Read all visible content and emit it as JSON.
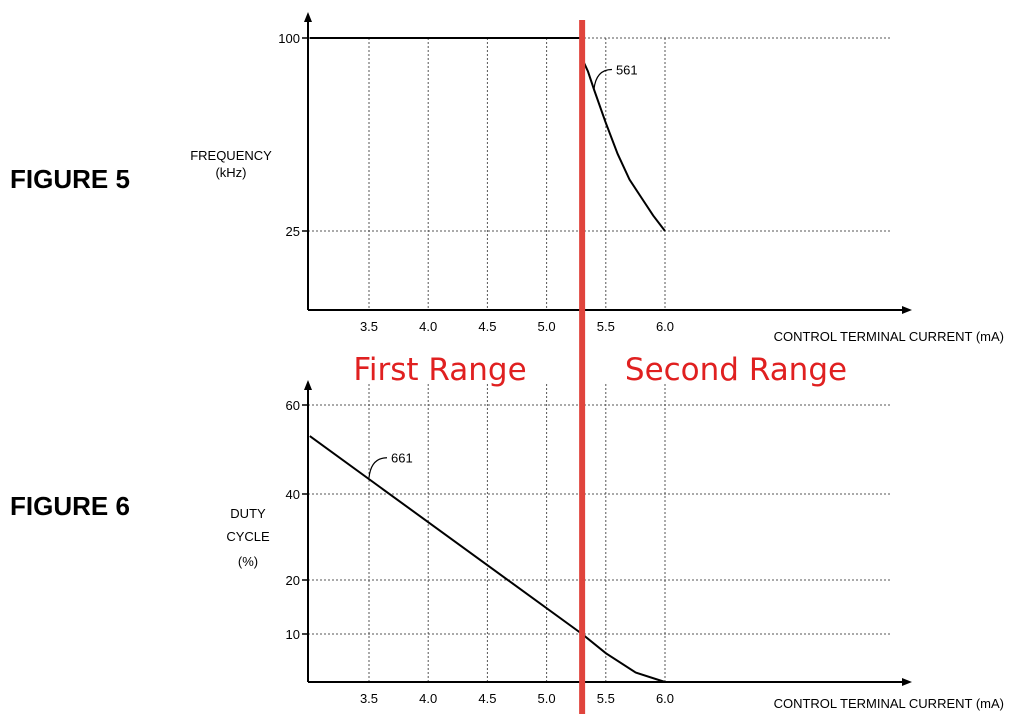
{
  "colors": {
    "divider": "#e0443c",
    "range_text": "#e02020",
    "ink": "#000000"
  },
  "ranges": {
    "first": "First Range",
    "second": "Second Range",
    "boundary_x": 5.3
  },
  "chart_data": [
    {
      "id": "fig5",
      "type": "line",
      "figure_label": "FIGURE 5",
      "ylabel_lines": [
        "FREQUENCY",
        "(kHz)"
      ],
      "xlabel": "CONTROL TERMINAL CURRENT (mA)",
      "xticks": [
        3.5,
        4.0,
        4.5,
        5.0,
        5.5,
        6.0
      ],
      "xtick_labels": [
        "3.5",
        "4.0",
        "4.5",
        "5.0",
        "5.5",
        "6.0"
      ],
      "yticks": [
        25,
        100
      ],
      "ytick_labels": [
        "25",
        "100"
      ],
      "xlim": [
        3.0,
        6.0
      ],
      "ylim": [
        0,
        100
      ],
      "grid": "dotted",
      "series": [
        {
          "callout": "561",
          "callout_at": 5.4,
          "points": [
            [
              3.0,
              100
            ],
            [
              5.3,
              100
            ],
            [
              5.3,
              92
            ],
            [
              5.35,
              87
            ],
            [
              5.4,
              80
            ],
            [
              5.5,
              67
            ],
            [
              5.6,
              55
            ],
            [
              5.7,
              45
            ],
            [
              5.8,
              38
            ],
            [
              5.9,
              31
            ],
            [
              6.0,
              25
            ]
          ]
        }
      ]
    },
    {
      "id": "fig6",
      "type": "line",
      "figure_label": "FIGURE 6",
      "ylabel_lines": [
        "DUTY",
        "CYCLE",
        "(%)"
      ],
      "xlabel": "CONTROL TERMINAL CURRENT (mA)",
      "xticks": [
        3.5,
        4.0,
        4.5,
        5.0,
        5.5,
        6.0
      ],
      "xtick_labels": [
        "3.5",
        "4.0",
        "4.5",
        "5.0",
        "5.5",
        "6.0"
      ],
      "yticks": [
        10,
        20,
        40,
        60
      ],
      "ytick_labels": [
        "10",
        "20",
        "40",
        "60"
      ],
      "xlim": [
        3.0,
        6.0
      ],
      "ylim": [
        0,
        60
      ],
      "grid": "dotted",
      "series": [
        {
          "callout": "661",
          "callout_at": 3.5,
          "points": [
            [
              3.0,
              53
            ],
            [
              5.3,
              10
            ],
            [
              5.5,
              6
            ],
            [
              5.75,
              2
            ],
            [
              6.0,
              0
            ]
          ]
        }
      ]
    }
  ]
}
